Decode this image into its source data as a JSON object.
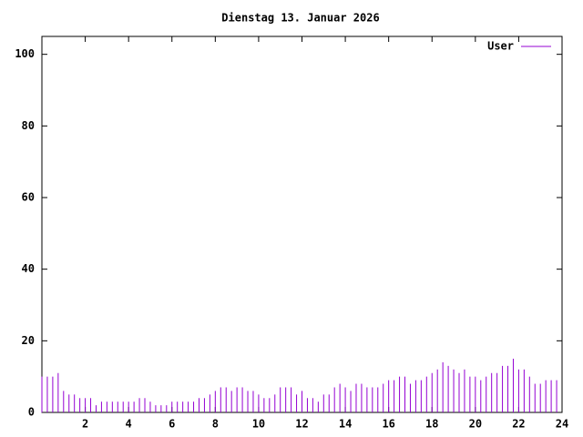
{
  "chart_data": {
    "type": "impulse",
    "title": "Dienstag 13. Januar 2026",
    "x": [
      0,
      0.25,
      0.5,
      0.75,
      1,
      1.25,
      1.5,
      1.75,
      2,
      2.25,
      2.5,
      2.75,
      3,
      3.25,
      3.5,
      3.75,
      4,
      4.25,
      4.5,
      4.75,
      5,
      5.25,
      5.5,
      5.75,
      6,
      6.25,
      6.5,
      6.75,
      7,
      7.25,
      7.5,
      7.75,
      8,
      8.25,
      8.5,
      8.75,
      9,
      9.25,
      9.5,
      9.75,
      10,
      10.25,
      10.5,
      10.75,
      11,
      11.25,
      11.5,
      11.75,
      12,
      12.25,
      12.5,
      12.75,
      13,
      13.25,
      13.5,
      13.75,
      14,
      14.25,
      14.5,
      14.75,
      15,
      15.25,
      15.5,
      15.75,
      16,
      16.25,
      16.5,
      16.75,
      17,
      17.25,
      17.5,
      17.75,
      18,
      18.25,
      18.5,
      18.75,
      19,
      19.25,
      19.5,
      19.75,
      20,
      20.25,
      20.5,
      20.75,
      21,
      21.25,
      21.5,
      21.75,
      22,
      22.25,
      22.5,
      22.75,
      23,
      23.25,
      23.5,
      23.75
    ],
    "series": [
      {
        "name": "User",
        "color": "#9400d3",
        "values": [
          10,
          10,
          10,
          11,
          6,
          5,
          5,
          4,
          4,
          4,
          2,
          3,
          3,
          3,
          3,
          3,
          3,
          3,
          4,
          4,
          3,
          2,
          2,
          2,
          3,
          3,
          3,
          3,
          3,
          4,
          4,
          5,
          6,
          7,
          7,
          6,
          7,
          7,
          6,
          6,
          5,
          4,
          4,
          5,
          7,
          7,
          7,
          5,
          6,
          4,
          4,
          3,
          5,
          5,
          7,
          8,
          7,
          6,
          8,
          8,
          7,
          7,
          7,
          8,
          9,
          9,
          10,
          10,
          8,
          9,
          9,
          10,
          11,
          12,
          14,
          13,
          12,
          11,
          12,
          10,
          10,
          9,
          10,
          11,
          11,
          13,
          13,
          15,
          12,
          12,
          10,
          8,
          8,
          9,
          9,
          9
        ]
      }
    ],
    "xlim": [
      0,
      24
    ],
    "xticks": [
      2,
      4,
      6,
      8,
      10,
      12,
      14,
      16,
      18,
      20,
      22,
      24
    ],
    "ylim": [
      0,
      105
    ],
    "yticks": [
      0,
      20,
      40,
      60,
      80,
      100
    ],
    "legend": "top-right"
  }
}
